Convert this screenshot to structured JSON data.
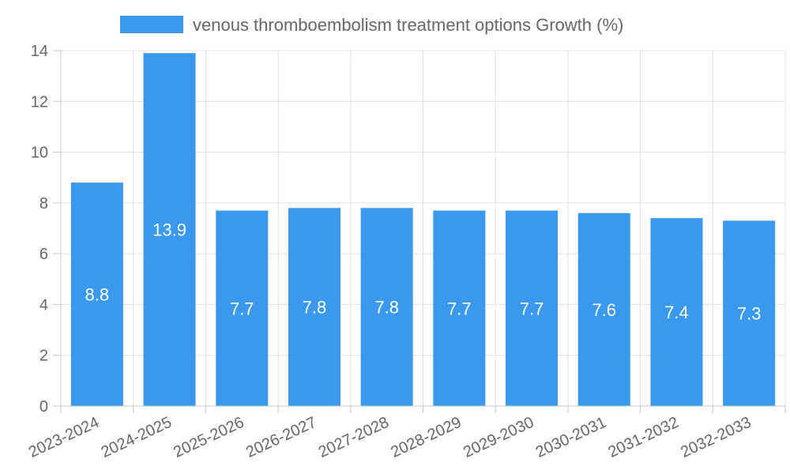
{
  "chart_data": {
    "type": "bar",
    "title": "",
    "xlabel": "",
    "ylabel": "",
    "legend": {
      "position": "top",
      "label": "venous thromboembolism treatment options Growth (%)"
    },
    "categories": [
      "2023-2024",
      "2024-2025",
      "2025-2026",
      "2026-2027",
      "2027-2028",
      "2028-2029",
      "2029-2030",
      "2030-2031",
      "2031-2032",
      "2032-2033"
    ],
    "series": [
      {
        "name": "venous thromboembolism treatment options Growth (%)",
        "values": [
          8.8,
          13.9,
          7.7,
          7.8,
          7.8,
          7.7,
          7.7,
          7.6,
          7.4,
          7.3
        ],
        "color": "#3a99ef"
      }
    ],
    "data_labels": [
      "8.8",
      "13.9",
      "7.7",
      "7.8",
      "7.8",
      "7.7",
      "7.7",
      "7.6",
      "7.4",
      "7.3"
    ],
    "y_ticks": [
      0,
      2,
      4,
      6,
      8,
      10,
      12,
      14
    ],
    "ylim": [
      0,
      14
    ],
    "grid": true
  },
  "colors": {
    "bar": "#3a99ef",
    "grid": "#e0e0e0",
    "axis": "#c8c8c8",
    "text": "#666666",
    "label": "#ffffff"
  }
}
